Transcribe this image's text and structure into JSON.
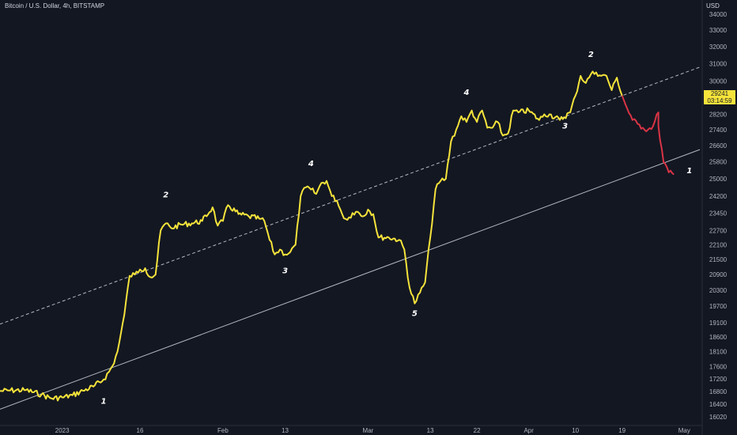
{
  "header": {
    "title": "Bitcoin / U.S. Dollar, 4h, BITSTAMP",
    "currency": "USD"
  },
  "price_tag": {
    "price": "29241",
    "countdown": "03:14:59"
  },
  "colors": {
    "background": "#131722",
    "line_main": "#f5e33b",
    "line_recent": "#d93445",
    "trend_line": "#d1d4dc",
    "axis_text": "#b2b5be"
  },
  "chart_data": {
    "type": "line",
    "title": "",
    "xlabel": "",
    "ylabel": "",
    "ylim": [
      16020,
      34000
    ],
    "scale": "log",
    "grid": false,
    "y_ticks": [
      34000,
      33000,
      32000,
      31000,
      30000,
      29000,
      28200,
      27400,
      26600,
      25800,
      25000,
      24200,
      23450,
      22700,
      22100,
      21500,
      20900,
      20300,
      19700,
      19100,
      18600,
      18100,
      17600,
      17200,
      16800,
      16400,
      16020
    ],
    "x_ticks": [
      "2023",
      "16",
      "Feb",
      "13",
      "Mar",
      "13",
      "22",
      "Apr",
      "10",
      "19",
      "May"
    ],
    "x_tick_dates": [
      "2023-01-01",
      "2023-01-16",
      "2023-02-01",
      "2023-02-13",
      "2023-03-01",
      "2023-03-13",
      "2023-03-22",
      "2023-04-01",
      "2023-04-10",
      "2023-04-19",
      "2023-05-01"
    ],
    "series": [
      {
        "color": "#f5e33b",
        "points": [
          [
            "2022-12-20",
            16810
          ],
          [
            "2022-12-22",
            16830
          ],
          [
            "2022-12-25",
            16840
          ],
          [
            "2022-12-28",
            16700
          ],
          [
            "2022-12-30",
            16580
          ],
          [
            "2023-01-01",
            16610
          ],
          [
            "2023-01-03",
            16680
          ],
          [
            "2023-01-05",
            16820
          ],
          [
            "2023-01-07",
            16950
          ],
          [
            "2023-01-09",
            17180
          ],
          [
            "2023-01-10",
            17420
          ],
          [
            "2023-01-11",
            17700
          ],
          [
            "2023-01-12",
            18400
          ],
          [
            "2023-01-13",
            19400
          ],
          [
            "2023-01-14",
            20850
          ],
          [
            "2023-01-15",
            20900
          ],
          [
            "2023-01-16",
            21100
          ],
          [
            "2023-01-17",
            21150
          ],
          [
            "2023-01-18",
            20800
          ],
          [
            "2023-01-19",
            20900
          ],
          [
            "2023-01-20",
            22700
          ],
          [
            "2023-01-21",
            23000
          ],
          [
            "2023-01-22",
            22800
          ],
          [
            "2023-01-24",
            22950
          ],
          [
            "2023-01-26",
            23000
          ],
          [
            "2023-01-28",
            23100
          ],
          [
            "2023-01-30",
            23700
          ],
          [
            "2023-01-31",
            22900
          ],
          [
            "2023-02-01",
            23100
          ],
          [
            "2023-02-02",
            23800
          ],
          [
            "2023-02-04",
            23400
          ],
          [
            "2023-02-06",
            23300
          ],
          [
            "2023-02-08",
            23200
          ],
          [
            "2023-02-09",
            23100
          ],
          [
            "2023-02-10",
            22300
          ],
          [
            "2023-02-11",
            21700
          ],
          [
            "2023-02-12",
            21900
          ],
          [
            "2023-02-13",
            21700
          ],
          [
            "2023-02-14",
            21800
          ],
          [
            "2023-02-15",
            22100
          ],
          [
            "2023-02-16",
            24200
          ],
          [
            "2023-02-17",
            24600
          ],
          [
            "2023-02-18",
            24500
          ],
          [
            "2023-02-19",
            24300
          ],
          [
            "2023-02-20",
            24800
          ],
          [
            "2023-02-21",
            24900
          ],
          [
            "2023-02-22",
            24200
          ],
          [
            "2023-02-23",
            24000
          ],
          [
            "2023-02-24",
            23400
          ],
          [
            "2023-02-25",
            23150
          ],
          [
            "2023-02-26",
            23450
          ],
          [
            "2023-02-27",
            23500
          ],
          [
            "2023-02-28",
            23300
          ],
          [
            "2023-03-01",
            23600
          ],
          [
            "2023-03-02",
            23400
          ],
          [
            "2023-03-03",
            22400
          ],
          [
            "2023-03-05",
            22400
          ],
          [
            "2023-03-07",
            22300
          ],
          [
            "2023-03-08",
            21900
          ],
          [
            "2023-03-09",
            20400
          ],
          [
            "2023-03-10",
            19800
          ],
          [
            "2023-03-11",
            20200
          ],
          [
            "2023-03-12",
            20600
          ],
          [
            "2023-03-13",
            22400
          ],
          [
            "2023-03-14",
            24500
          ],
          [
            "2023-03-15",
            24900
          ],
          [
            "2023-03-16",
            25000
          ],
          [
            "2023-03-17",
            26800
          ],
          [
            "2023-03-18",
            27400
          ],
          [
            "2023-03-19",
            28100
          ],
          [
            "2023-03-20",
            27800
          ],
          [
            "2023-03-21",
            28400
          ],
          [
            "2023-03-22",
            27800
          ],
          [
            "2023-03-23",
            28400
          ],
          [
            "2023-03-24",
            27500
          ],
          [
            "2023-03-25",
            27500
          ],
          [
            "2023-03-26",
            27800
          ],
          [
            "2023-03-27",
            27100
          ],
          [
            "2023-03-28",
            27200
          ],
          [
            "2023-03-29",
            28400
          ],
          [
            "2023-03-30",
            28300
          ],
          [
            "2023-04-01",
            28400
          ],
          [
            "2023-04-03",
            27900
          ],
          [
            "2023-04-04",
            28200
          ],
          [
            "2023-04-05",
            28200
          ],
          [
            "2023-04-07",
            27900
          ],
          [
            "2023-04-09",
            28300
          ],
          [
            "2023-04-10",
            29200
          ],
          [
            "2023-04-11",
            30300
          ],
          [
            "2023-04-12",
            29900
          ],
          [
            "2023-04-13",
            30400
          ],
          [
            "2023-04-14",
            30500
          ],
          [
            "2023-04-15",
            30300
          ],
          [
            "2023-04-16",
            30300
          ],
          [
            "2023-04-17",
            29500
          ],
          [
            "2023-04-18",
            30200
          ],
          [
            "2023-04-19",
            29200
          ]
        ]
      },
      {
        "color": "#d93445",
        "points": [
          [
            "2023-04-19",
            29200
          ],
          [
            "2023-04-20",
            28500
          ],
          [
            "2023-04-21",
            27900
          ],
          [
            "2023-04-22",
            27700
          ],
          [
            "2023-04-23",
            27500
          ],
          [
            "2023-04-24",
            27400
          ],
          [
            "2023-04-25",
            27600
          ],
          [
            "2023-04-26",
            28300
          ],
          [
            "2023-04-26",
            27600
          ],
          [
            "2023-04-27",
            25800
          ],
          [
            "2023-04-28",
            25300
          ],
          [
            "2023-04-29",
            25200
          ]
        ]
      }
    ],
    "trend_lines": [
      {
        "style": "solid",
        "from": [
          "2022-12-20",
          16250
        ],
        "to": [
          "2023-05-04",
          26400
        ]
      },
      {
        "style": "dashed",
        "from": [
          "2022-12-20",
          19050
        ],
        "to": [
          "2023-05-04",
          30800
        ]
      }
    ],
    "annotations": [
      {
        "label": "1",
        "date": "2023-01-09",
        "price": 16420
      },
      {
        "label": "2",
        "date": "2023-01-21",
        "price": 24150
      },
      {
        "label": "3",
        "date": "2023-02-13",
        "price": 20950
      },
      {
        "label": "4",
        "date": "2023-02-18",
        "price": 25600
      },
      {
        "label": "5",
        "date": "2023-03-10",
        "price": 19350
      },
      {
        "label": "4",
        "date": "2023-03-20",
        "price": 29250
      },
      {
        "label": "3",
        "date": "2023-04-08",
        "price": 27450
      },
      {
        "label": "2",
        "date": "2023-04-13",
        "price": 31400
      },
      {
        "label": "1",
        "date": "2023-05-02",
        "price": 25250
      }
    ]
  }
}
